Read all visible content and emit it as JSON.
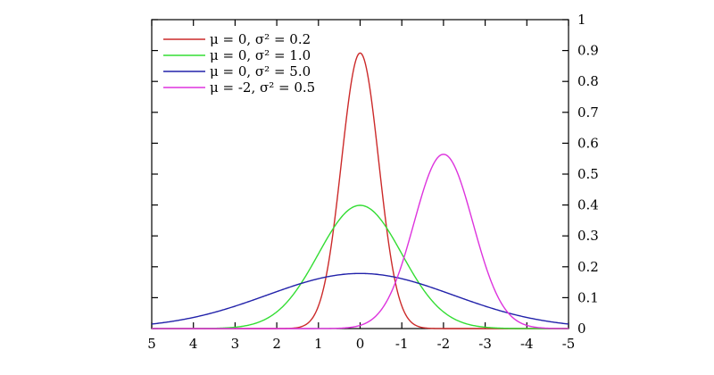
{
  "chart_data": {
    "type": "line",
    "title": "",
    "xlabel": "",
    "ylabel": "",
    "mirrored_horizontally": true,
    "xlim": [
      -5,
      5
    ],
    "ylim": [
      0,
      1
    ],
    "grid": false,
    "legend_position": "top-right",
    "x_ticks": [
      {
        "value": -5,
        "label": "-5"
      },
      {
        "value": -4,
        "label": "-4"
      },
      {
        "value": -3,
        "label": "-3"
      },
      {
        "value": -2,
        "label": "-2"
      },
      {
        "value": -1,
        "label": "-1"
      },
      {
        "value": 0,
        "label": "0"
      },
      {
        "value": 1,
        "label": "1"
      },
      {
        "value": 2,
        "label": "2"
      },
      {
        "value": 3,
        "label": "3"
      },
      {
        "value": 4,
        "label": "4"
      },
      {
        "value": 5,
        "label": "5"
      }
    ],
    "y_ticks": [
      {
        "value": 0,
        "label": "0"
      },
      {
        "value": 0.1,
        "label": "0.1"
      },
      {
        "value": 0.2,
        "label": "0.2"
      },
      {
        "value": 0.3,
        "label": "0.3"
      },
      {
        "value": 0.4,
        "label": "0.4"
      },
      {
        "value": 0.5,
        "label": "0.5"
      },
      {
        "value": 0.6,
        "label": "0.6"
      },
      {
        "value": 0.7,
        "label": "0.7"
      },
      {
        "value": 0.8,
        "label": "0.8"
      },
      {
        "value": 0.9,
        "label": "0.9"
      },
      {
        "value": 1,
        "label": "1"
      }
    ],
    "series": [
      {
        "name": "μ = 0, σ² = 0.2",
        "mu": 0,
        "variance": 0.2,
        "color": "#cc2a2a"
      },
      {
        "name": "μ = 0, σ² = 1.0",
        "mu": 0,
        "variance": 1.0,
        "color": "#33dd33"
      },
      {
        "name": "μ = 0, σ² = 5.0",
        "mu": 0,
        "variance": 5.0,
        "color": "#2222aa"
      },
      {
        "name": "μ = -2, σ² = 0.5",
        "mu": -2,
        "variance": 0.5,
        "color": "#dd33dd"
      }
    ]
  }
}
